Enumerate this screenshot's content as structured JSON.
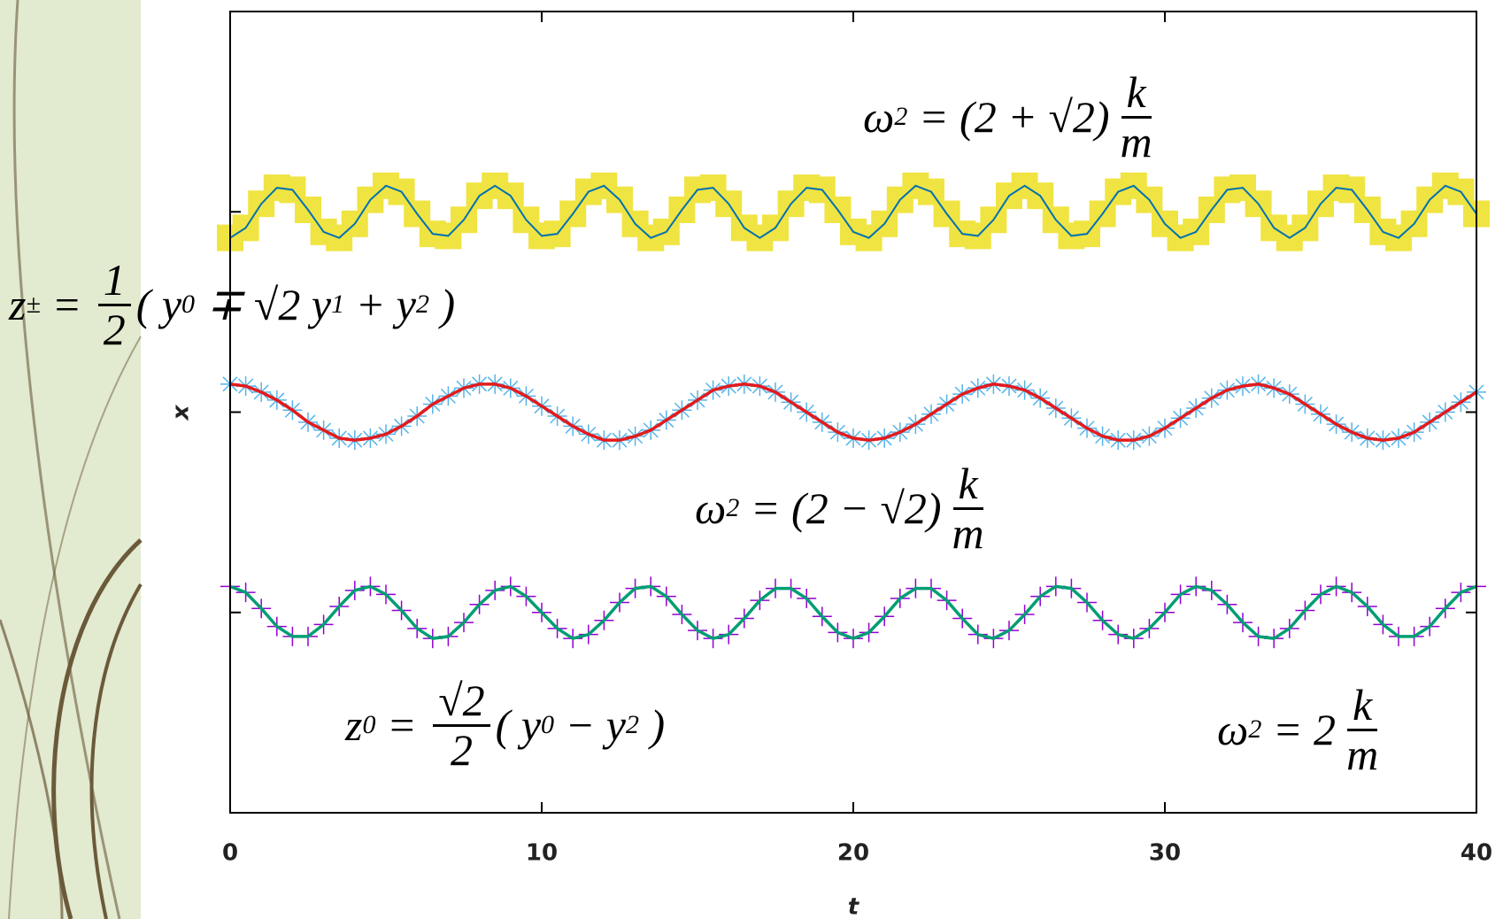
{
  "chart_data": {
    "type": "line",
    "x_label": "t",
    "y_label": "x",
    "xlim": [
      0,
      40
    ],
    "xticks": [
      0,
      10,
      20,
      30,
      40
    ],
    "ylim": [
      0,
      4
    ],
    "yticks": [
      1,
      2,
      3
    ],
    "x": [
      0,
      0.5,
      1,
      1.5,
      2,
      2.5,
      3,
      3.5,
      4,
      4.5,
      5,
      5.5,
      6,
      6.5,
      7,
      7.5,
      8,
      8.5,
      9,
      9.5,
      10,
      10.5,
      11,
      11.5,
      12,
      12.5,
      13,
      13.5,
      14,
      14.5,
      15,
      15.5,
      16,
      16.5,
      17,
      17.5,
      18,
      18.5,
      19,
      19.5,
      20,
      20.5,
      21,
      21.5,
      22,
      22.5,
      23,
      23.5,
      24,
      24.5,
      25,
      25.5,
      26,
      26.5,
      27,
      27.5,
      28,
      28.5,
      29,
      29.5,
      30,
      30.5,
      31,
      31.5,
      32,
      32.5,
      33,
      33.5,
      34,
      34.5,
      35,
      35.5,
      36,
      36.5,
      37,
      37.5,
      38,
      38.5,
      39,
      39.5,
      40
    ],
    "series": [
      {
        "color": "#0072b2",
        "line_width": 2,
        "marker": "square",
        "marker_color": "#f0e442",
        "values": [
          2.87,
          2.92,
          3.04,
          3.12,
          3.11,
          3.01,
          2.9,
          2.87,
          2.94,
          3.06,
          3.13,
          3.1,
          2.99,
          2.89,
          2.88,
          2.96,
          3.08,
          3.13,
          3.08,
          2.96,
          2.88,
          2.89,
          2.99,
          3.1,
          3.13,
          3.06,
          2.94,
          2.87,
          2.9,
          3.01,
          3.11,
          3.12,
          3.04,
          2.92,
          2.87,
          2.92,
          3.04,
          3.12,
          3.11,
          3.01,
          2.9,
          2.87,
          2.94,
          3.06,
          3.13,
          3.1,
          2.99,
          2.89,
          2.88,
          2.96,
          3.08,
          3.13,
          3.08,
          2.96,
          2.88,
          2.89,
          2.99,
          3.1,
          3.13,
          3.06,
          2.94,
          2.87,
          2.9,
          3.01,
          3.11,
          3.12,
          3.04,
          2.92,
          2.87,
          2.92,
          3.04,
          3.12,
          3.11,
          3.01,
          2.9,
          2.87,
          2.94,
          3.06,
          3.13,
          3.1,
          2.99
        ]
      },
      {
        "color": "#e41a1c",
        "line_width": 3.5,
        "marker": "star",
        "marker_color": "#56b4e9",
        "values": [
          2.14,
          2.13,
          2.1,
          2.06,
          2.01,
          1.95,
          1.91,
          1.87,
          1.86,
          1.87,
          1.89,
          1.93,
          1.98,
          2.04,
          2.08,
          2.12,
          2.14,
          2.14,
          2.12,
          2.08,
          2.03,
          1.98,
          1.93,
          1.89,
          1.86,
          1.86,
          1.88,
          1.91,
          1.96,
          2.01,
          2.06,
          2.11,
          2.13,
          2.14,
          2.13,
          2.1,
          2.05,
          2.0,
          1.95,
          1.9,
          1.87,
          1.86,
          1.87,
          1.9,
          1.94,
          1.99,
          2.04,
          2.09,
          2.12,
          2.14,
          2.13,
          2.11,
          2.07,
          2.02,
          1.97,
          1.92,
          1.88,
          1.86,
          1.86,
          1.88,
          1.92,
          1.97,
          2.02,
          2.07,
          2.11,
          2.13,
          2.14,
          2.12,
          2.09,
          2.04,
          1.99,
          1.94,
          1.9,
          1.87,
          1.86,
          1.87,
          1.9,
          1.95,
          2.0,
          2.05,
          2.1
        ]
      },
      {
        "color": "#009e73",
        "line_width": 3.5,
        "marker": "plus",
        "marker_color": "#9400d3",
        "values": [
          1.13,
          1.1,
          1.02,
          0.93,
          0.88,
          0.88,
          0.94,
          1.03,
          1.11,
          1.13,
          1.09,
          1.01,
          0.92,
          0.87,
          0.88,
          0.95,
          1.04,
          1.11,
          1.13,
          1.08,
          1.0,
          0.92,
          0.87,
          0.89,
          0.96,
          1.05,
          1.12,
          1.13,
          1.08,
          0.99,
          0.91,
          0.87,
          0.89,
          0.97,
          1.06,
          1.12,
          1.12,
          1.07,
          0.98,
          0.9,
          0.87,
          0.9,
          0.98,
          1.07,
          1.12,
          1.12,
          1.06,
          0.97,
          0.89,
          0.87,
          0.91,
          0.99,
          1.08,
          1.13,
          1.12,
          1.05,
          0.96,
          0.89,
          0.87,
          0.92,
          1.0,
          1.09,
          1.13,
          1.11,
          1.04,
          0.95,
          0.88,
          0.87,
          0.92,
          1.01,
          1.09,
          1.13,
          1.1,
          1.03,
          0.94,
          0.88,
          0.88,
          0.93,
          1.02,
          1.1,
          1.13
        ]
      }
    ],
    "annotations": [
      {
        "parts": [
          "ω",
          {
            "sup": "2"
          },
          " = (2 + √2)",
          {
            "num": "k",
            "den": "m"
          }
        ]
      },
      {
        "parts": [
          "z",
          {
            "sub": "±"
          },
          " = ",
          {
            "num": "1",
            "den": "2"
          },
          "( y",
          {
            "sub": "0"
          },
          " ∓ √2 y",
          {
            "sub": "1"
          },
          " + y",
          {
            "sub": "2"
          },
          " )"
        ]
      },
      {
        "parts": [
          "ω",
          {
            "sup": "2"
          },
          " = (2 − √2)",
          {
            "num": "k",
            "den": "m"
          }
        ]
      },
      {
        "parts": [
          "z",
          {
            "sub": "0"
          },
          " = ",
          {
            "num": "√2",
            "den": "2"
          },
          "( y",
          {
            "sub": "0"
          },
          " − y",
          {
            "sub": "2"
          },
          " )"
        ]
      },
      {
        "parts": [
          "ω",
          {
            "sup": "2"
          },
          " = 2",
          {
            "num": "k",
            "den": "m"
          }
        ]
      }
    ]
  }
}
